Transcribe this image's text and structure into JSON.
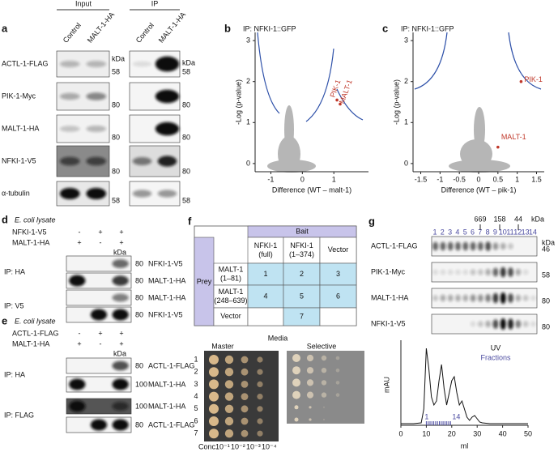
{
  "a": {
    "label": "a",
    "input": "Input",
    "ip": "IP",
    "lanes": [
      "Control",
      "MALT-1-HA",
      "Control",
      "MALT-1-HA"
    ],
    "kda": "kDa",
    "rows": [
      {
        "name": "ACTL-1-FLAG",
        "mw_input": "58",
        "mw_ip": "58"
      },
      {
        "name": "PIK-1-Myc",
        "mw_input": "80",
        "mw_ip": "80"
      },
      {
        "name": "MALT-1-HA",
        "mw_input": "80",
        "mw_ip": "80"
      },
      {
        "name": "NFKI-1-V5",
        "mw_input": "80",
        "mw_ip": "80"
      },
      {
        "name": "α-tubulin",
        "mw_input": "58",
        "mw_ip": "58"
      }
    ]
  },
  "b": {
    "label": "b",
    "type": "scatter",
    "title": "IP: NFKI-1::GFP",
    "ylabel": "-Log (p-value)",
    "xlabel": "Difference (WT – malt-1)",
    "xlim": [
      -1.5,
      2.1
    ],
    "ylim": [
      -0.2,
      3.2
    ],
    "xticks": [
      -1,
      0,
      1
    ],
    "yticks": [
      0,
      1,
      2,
      3
    ],
    "points": [
      {
        "label": "PIK-1",
        "x": 1.1,
        "y": 1.55
      },
      {
        "label": "MALT-1",
        "x": 1.2,
        "y": 1.45
      }
    ]
  },
  "c": {
    "label": "c",
    "type": "scatter",
    "title": "IP: NFKI-1::GFP",
    "ylabel": "-Log (p-value)",
    "xlabel": "Difference (WT – pik-1)",
    "xlim": [
      -1.7,
      1.7
    ],
    "ylim": [
      -0.2,
      3.2
    ],
    "xticks": [
      -1.5,
      -1,
      -0.5,
      0,
      0.5,
      1,
      1.5
    ],
    "yticks": [
      0,
      1,
      2,
      3
    ],
    "points": [
      {
        "label": "PIK-1",
        "x": 1.1,
        "y": 2.0
      },
      {
        "label": "MALT-1",
        "x": 0.5,
        "y": 0.4
      }
    ]
  },
  "d": {
    "label": "d",
    "lysate": "E. coli lysate",
    "kda": "kDa",
    "conditions": [
      {
        "name": "NFKI-1-V5",
        "signs": [
          "-",
          "+",
          "+"
        ]
      },
      {
        "name": "MALT-1-HA",
        "signs": [
          "+",
          "-",
          "+"
        ]
      }
    ],
    "groups": [
      {
        "name": "IP: HA",
        "blots": [
          {
            "mw": "80",
            "name": "NFKI-1-V5"
          },
          {
            "mw": "80",
            "name": "MALT-1-HA"
          }
        ]
      },
      {
        "name": "IP: V5",
        "blots": [
          {
            "mw": "80",
            "name": "MALT-1-HA"
          },
          {
            "mw": "80",
            "name": "NFKI-1-V5"
          }
        ]
      }
    ]
  },
  "e": {
    "label": "e",
    "lysate": "E. coli lysate",
    "kda": "kDa",
    "conditions": [
      {
        "name": "ACTL-1-FLAG",
        "signs": [
          "-",
          "+",
          "+"
        ]
      },
      {
        "name": "MALT-1-HA",
        "signs": [
          "+",
          "-",
          "+"
        ]
      }
    ],
    "groups": [
      {
        "name": "IP: HA",
        "blots": [
          {
            "mw": "80",
            "name": "ACTL-1-FLAG"
          },
          {
            "mw": "100",
            "name": "MALT-1-HA"
          }
        ]
      },
      {
        "name": "IP: FLAG",
        "blots": [
          {
            "mw": "100",
            "name": "MALT-1-HA"
          },
          {
            "mw": "80",
            "name": "ACTL-1-FLAG"
          }
        ]
      }
    ]
  },
  "f": {
    "label": "f",
    "bait": "Bait",
    "prey": "Prey",
    "columns": [
      "NFKI-1 (full)",
      "NFKI-1 (1–374)",
      "Vector"
    ],
    "rows": [
      "MALT-1 (1–81)",
      "MALT-1 (248–639)",
      "Vector"
    ],
    "cells": [
      [
        1,
        2,
        3
      ],
      [
        4,
        5,
        6
      ],
      [
        null,
        7,
        null
      ]
    ],
    "media": "Media",
    "master": "Master",
    "selective": "Selective",
    "plate_rows": [
      "1",
      "2",
      "3",
      "4",
      "5",
      "6",
      "7"
    ],
    "conc": "Conc.",
    "dilutions": [
      "10⁻¹",
      "10⁻²",
      "10⁻³",
      "10⁻⁴"
    ]
  },
  "g": {
    "label": "g",
    "fractions": [
      "1",
      "2",
      "3",
      "4",
      "5",
      "6",
      "7",
      "8",
      "9",
      "10",
      "11",
      "12",
      "13",
      "14"
    ],
    "markers": [
      "669",
      "158",
      "44"
    ],
    "kda": "kDa",
    "blots": [
      {
        "name": "ACTL-1-FLAG",
        "mw": "46"
      },
      {
        "name": "PIK-1-Myc",
        "mw": "58"
      },
      {
        "name": "MALT-1-HA",
        "mw": "80"
      },
      {
        "name": "NFKI-1-V5",
        "mw": "80"
      }
    ],
    "chromatogram": {
      "type": "line",
      "ylabel": "mAU",
      "xlabel": "ml",
      "legend": [
        "UV",
        "Fractions"
      ],
      "xlim": [
        0,
        50
      ],
      "ylim": [
        0,
        100
      ],
      "xticks": [
        0,
        10,
        20,
        30,
        40,
        50
      ],
      "x": [
        0,
        5,
        8,
        9,
        10,
        11,
        12,
        13,
        14,
        15,
        16,
        17,
        18,
        19,
        20,
        21,
        22,
        23,
        24,
        25,
        26,
        27,
        28,
        29,
        30,
        31,
        32,
        35,
        40,
        50
      ],
      "values": [
        2,
        2,
        3,
        20,
        95,
        70,
        35,
        25,
        30,
        55,
        75,
        45,
        25,
        40,
        55,
        60,
        40,
        25,
        30,
        20,
        10,
        6,
        10,
        12,
        8,
        4,
        3,
        2,
        2,
        2
      ]
    }
  }
}
